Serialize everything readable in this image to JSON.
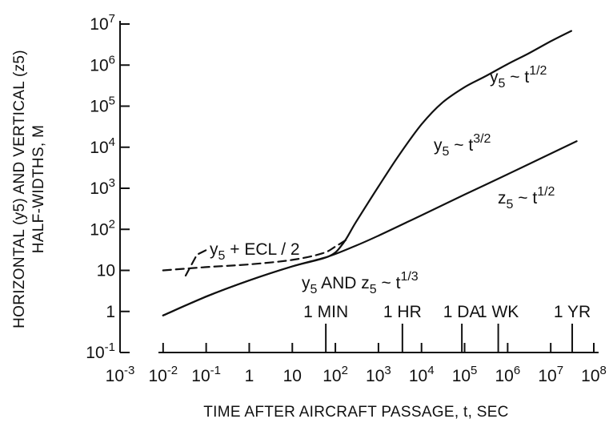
{
  "chart_data": {
    "type": "line",
    "xscale": "log",
    "yscale": "log",
    "xlim": [
      0.001,
      100000000
    ],
    "ylim": [
      0.1,
      10000000
    ],
    "x_ticks": [
      "10^-3",
      "10^-2",
      "10^-1",
      "1",
      "10",
      "10^2",
      "10^3",
      "10^4",
      "10^5",
      "10^6",
      "10^7",
      "10^8"
    ],
    "y_ticks": [
      "10^-1",
      "1",
      "10",
      "10^2",
      "10^3",
      "10^4",
      "10^5",
      "10^6",
      "10^7"
    ],
    "xlabel": "TIME AFTER AIRCRAFT PASSAGE, t, SEC",
    "ylabel_line1": "HORIZONTAL (y5) AND VERTICAL (z5)",
    "ylabel_line2": "HALF-WIDTHS, M",
    "time_markers": [
      {
        "label": "1 MIN",
        "t": 60
      },
      {
        "label": "1 HR",
        "t": 3600
      },
      {
        "label": "1 DA",
        "t": 86400
      },
      {
        "label": "1 WK",
        "t": 604800
      },
      {
        "label": "1 YR",
        "t": 31536000
      }
    ],
    "annotations": {
      "y5_half": "y5 ~ t1/2",
      "y5_threehalf": "y5 ~ t3/2",
      "z5_half": "z5 ~ t1/2",
      "y5_z5_third": "y5 AND z5 ~ t1/3",
      "y5_ecl": "y5 + ECL / 2"
    },
    "series": [
      {
        "name": "y5",
        "x": [
          0.01,
          0.1,
          1,
          10,
          70,
          150,
          300,
          1000,
          3000,
          10000,
          30000,
          100000,
          300000,
          1000000,
          3000000,
          10000000,
          30000000
        ],
        "y": [
          0.8,
          2.3,
          5.7,
          12.5,
          22,
          45,
          150,
          1100,
          6400,
          36000,
          120000,
          290000,
          530000,
          1060000,
          1900000,
          3800000,
          6800000
        ]
      },
      {
        "name": "z5",
        "x": [
          0.01,
          0.1,
          1,
          10,
          70,
          300,
          1000,
          10000,
          100000,
          1000000,
          10000000,
          40000000
        ],
        "y": [
          0.8,
          2.3,
          5.7,
          12.5,
          22,
          40,
          70,
          220,
          700,
          2200,
          7000,
          14000
        ]
      },
      {
        "name": "y5 + ECL / 2",
        "style": "dashed",
        "x": [
          0.01,
          0.1,
          1,
          10,
          50,
          100,
          200
        ],
        "y": [
          10,
          12,
          14,
          18,
          26,
          38,
          60
        ]
      }
    ]
  }
}
